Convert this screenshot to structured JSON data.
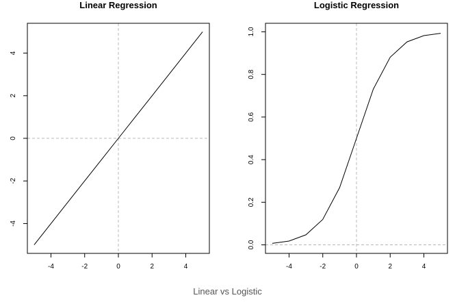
{
  "caption": "Linear vs Logistic",
  "chart_data": [
    {
      "type": "line",
      "title": "Linear Regression",
      "xlabel": "",
      "ylabel": "",
      "x": [
        -5,
        -4,
        -3,
        -2,
        -1,
        0,
        1,
        2,
        3,
        4,
        5
      ],
      "y": [
        -5,
        -4,
        -3,
        -2,
        -1,
        0,
        1,
        2,
        3,
        4,
        5
      ],
      "xlim": [
        -5.4,
        5.4
      ],
      "ylim": [
        -5.4,
        5.4
      ],
      "xticks": [
        -4,
        -2,
        0,
        2,
        4
      ],
      "yticks": [
        -4,
        -2,
        0,
        2,
        4
      ],
      "xtick_labels": [
        "-4",
        "-2",
        "0",
        "2",
        "4"
      ],
      "ytick_labels": [
        "-4",
        "-2",
        "0",
        "2",
        "4"
      ],
      "reference_lines": {
        "x": 0,
        "y": 0,
        "style": "dashed",
        "color": "#b8b8b8"
      },
      "grid": false
    },
    {
      "type": "line",
      "title": "Logistic Regression",
      "xlabel": "",
      "ylabel": "",
      "x": [
        -5,
        -4,
        -3,
        -2,
        -1,
        0,
        1,
        2,
        3,
        4,
        5
      ],
      "y": [
        0.007,
        0.018,
        0.047,
        0.119,
        0.269,
        0.5,
        0.731,
        0.881,
        0.953,
        0.982,
        0.993
      ],
      "xlim": [
        -5.4,
        5.4
      ],
      "ylim": [
        -0.04,
        1.04
      ],
      "xticks": [
        -4,
        -2,
        0,
        2,
        4
      ],
      "yticks": [
        0.0,
        0.2,
        0.4,
        0.6,
        0.8,
        1.0
      ],
      "xtick_labels": [
        "-4",
        "-2",
        "0",
        "2",
        "4"
      ],
      "ytick_labels": [
        "0.0",
        "0.2",
        "0.4",
        "0.6",
        "0.8",
        "1.0"
      ],
      "reference_lines": {
        "x": 0,
        "y": 0,
        "style": "dashed",
        "color": "#b8b8b8"
      },
      "grid": false
    }
  ]
}
